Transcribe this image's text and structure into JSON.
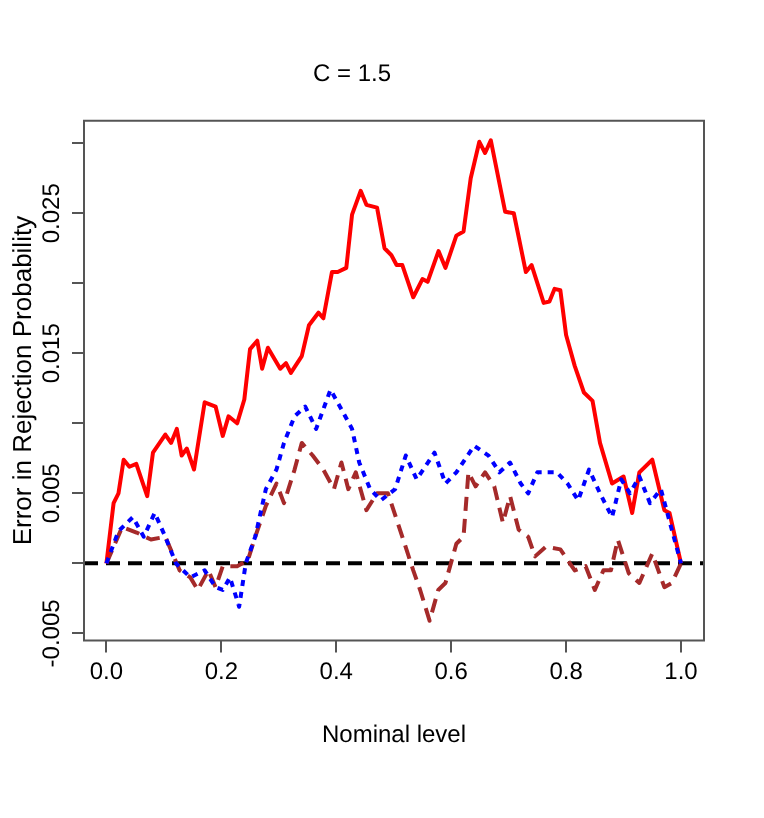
{
  "chart_data": {
    "type": "line",
    "title": "C = 1.5",
    "xlabel": "Nominal level",
    "ylabel": "Error in Rejection Probability",
    "xlim": [
      -0.039,
      1.04
    ],
    "ylim": [
      -0.0055,
      0.0316
    ],
    "xticks": [
      {
        "value": 0,
        "label": "0.0"
      },
      {
        "value": 0.2,
        "label": "0.2"
      },
      {
        "value": 0.4,
        "label": "0.4"
      },
      {
        "value": 0.6,
        "label": "0.6"
      },
      {
        "value": 0.8,
        "label": "0.8"
      },
      {
        "value": 1,
        "label": "1.0"
      }
    ],
    "yticks": [
      -0.005,
      {
        "value": 0,
        "label": null
      },
      0.005,
      {
        "value": 0.01,
        "label": null
      },
      0.015,
      {
        "value": 0.02,
        "label": null
      },
      0.025,
      {
        "value": 0.03,
        "label": null
      }
    ],
    "grid": false,
    "legend": false,
    "marker": "none",
    "ref_lines": [
      {
        "axis": "y",
        "value": 0,
        "color": "#000000",
        "line_style": "dashed"
      }
    ],
    "series": [
      {
        "color": "#ff0000",
        "line_style": "solid",
        "x": [
          0,
          0.0125,
          0.021,
          0.03,
          0.04,
          0.052,
          0.071,
          0.081,
          0.1025,
          0.1125,
          0.1225,
          0.131,
          0.14,
          0.1525,
          0.171,
          0.19,
          0.2025,
          0.2125,
          0.2275,
          0.24,
          0.25,
          0.2625,
          0.271,
          0.281,
          0.3025,
          0.3125,
          0.321,
          0.34,
          0.3525,
          0.369,
          0.3775,
          0.3925,
          0.4025,
          0.4175,
          0.4275,
          0.4425,
          0.4525,
          0.471,
          0.484,
          0.496,
          0.505,
          0.515,
          0.534,
          0.55,
          0.559,
          0.578,
          0.59,
          0.609,
          0.6215,
          0.634,
          0.649,
          0.659,
          0.669,
          0.694,
          0.709,
          0.73,
          0.74,
          0.761,
          0.771,
          0.78,
          0.79,
          0.8,
          0.815,
          0.831,
          0.846,
          0.859,
          0.88,
          0.9,
          0.915,
          0.9275,
          0.95,
          0.971,
          0.98,
          1.0
        ],
        "values": [
          0,
          0.0043,
          0.005,
          0.0074,
          0.0069,
          0.0071,
          0.0048,
          0.0079,
          0.0092,
          0.0086,
          0.0096,
          0.0077,
          0.0082,
          0.0067,
          0.0115,
          0.0112,
          0.0091,
          0.0105,
          0.01,
          0.0117,
          0.0153,
          0.0159,
          0.0139,
          0.0154,
          0.0139,
          0.0143,
          0.0136,
          0.0148,
          0.017,
          0.0179,
          0.0175,
          0.0208,
          0.0208,
          0.0211,
          0.0249,
          0.0266,
          0.0256,
          0.0254,
          0.0225,
          0.022,
          0.0213,
          0.0213,
          0.019,
          0.0203,
          0.0201,
          0.0223,
          0.0211,
          0.0234,
          0.0237,
          0.0275,
          0.0301,
          0.0293,
          0.0302,
          0.0251,
          0.025,
          0.0208,
          0.0213,
          0.0186,
          0.0187,
          0.0196,
          0.0195,
          0.0163,
          0.0141,
          0.0122,
          0.0116,
          0.0086,
          0.0057,
          0.0062,
          0.0036,
          0.0065,
          0.0074,
          0.0038,
          0.0036,
          0
        ]
      },
      {
        "color": "#0000ff",
        "line_style": "dotted",
        "x": [
          0,
          0.021,
          0.046,
          0.065,
          0.084,
          0.1025,
          0.121,
          0.146,
          0.171,
          0.19,
          0.2025,
          0.215,
          0.231,
          0.2425,
          0.259,
          0.2775,
          0.296,
          0.309,
          0.3275,
          0.346,
          0.365,
          0.39,
          0.409,
          0.4275,
          0.44,
          0.459,
          0.4775,
          0.5025,
          0.521,
          0.54,
          0.571,
          0.59,
          0.609,
          0.64,
          0.665,
          0.684,
          0.7025,
          0.721,
          0.734,
          0.75,
          0.771,
          0.784,
          0.8025,
          0.821,
          0.84,
          0.859,
          0.88,
          0.896,
          0.911,
          0.9275,
          0.946,
          0.965,
          0.984,
          1.0
        ],
        "values": [
          0,
          0.0023,
          0.0033,
          0.0019,
          0.0036,
          0.0019,
          0,
          -0.001,
          -0.0005,
          -0.0017,
          -0.0019,
          -0.001,
          -0.0031,
          0,
          0.0019,
          0.0053,
          0.0067,
          0.0086,
          0.0105,
          0.0112,
          0.0096,
          0.0124,
          0.011,
          0.0096,
          0.0072,
          0.0053,
          0.0045,
          0.0053,
          0.0077,
          0.006,
          0.0079,
          0.0057,
          0.0065,
          0.0084,
          0.0077,
          0.0065,
          0.0072,
          0.0057,
          0.005,
          0.0065,
          0.0065,
          0.0065,
          0.0057,
          0.0045,
          0.0067,
          0.005,
          0.0033,
          0.006,
          0.005,
          0.0062,
          0.0043,
          0.0053,
          0.0024,
          0
        ]
      },
      {
        "color": "#a52a2a",
        "line_style": "dashed",
        "x": [
          0,
          0.0275,
          0.0525,
          0.0775,
          0.1025,
          0.1275,
          0.146,
          0.159,
          0.1775,
          0.19,
          0.2025,
          0.2275,
          0.246,
          0.259,
          0.2775,
          0.296,
          0.309,
          0.3275,
          0.34,
          0.359,
          0.3775,
          0.396,
          0.409,
          0.421,
          0.434,
          0.4525,
          0.471,
          0.49,
          0.515,
          0.534,
          0.546,
          0.5625,
          0.5775,
          0.59,
          0.609,
          0.6215,
          0.63,
          0.6425,
          0.659,
          0.675,
          0.69,
          0.7025,
          0.7175,
          0.734,
          0.746,
          0.765,
          0.79,
          0.815,
          0.834,
          0.85,
          0.865,
          0.878,
          0.89,
          0.909,
          0.9275,
          0.95,
          0.971,
          0.984,
          1.0
        ],
        "values": [
          0,
          0.0026,
          0.0022,
          0.0017,
          0.0019,
          -0.0005,
          -0.001,
          -0.0019,
          -0.0005,
          -0.0017,
          -0.0002,
          -0.0002,
          0.0002,
          0.0019,
          0.0041,
          0.0057,
          0.0043,
          0.0067,
          0.0086,
          0.0077,
          0.0067,
          0.0053,
          0.0072,
          0.0053,
          0.0065,
          0.0038,
          0.005,
          0.005,
          0.0019,
          -0.0005,
          -0.0019,
          -0.0041,
          -0.0019,
          -0.0014,
          0.0014,
          0.0019,
          0.0065,
          0.0055,
          0.0065,
          0.0055,
          0.0029,
          0.0048,
          0.0024,
          0.0019,
          0.0005,
          0.0012,
          0.001,
          -0.0005,
          -0.0002,
          -0.0019,
          -0.0005,
          -0.0005,
          0.0017,
          -0.0007,
          -0.0014,
          0.0007,
          -0.0017,
          -0.0014,
          0
        ]
      }
    ]
  }
}
